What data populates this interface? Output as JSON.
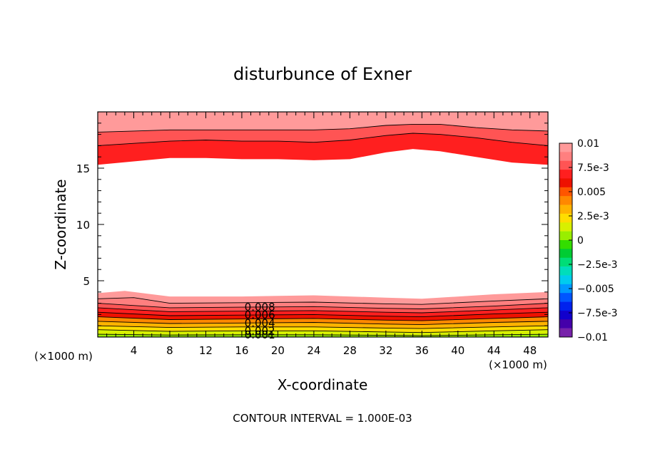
{
  "chart_data": {
    "type": "heatmap",
    "title": "disturbunce of Exner",
    "xlabel": "X-coordinate",
    "ylabel": "Z-coordinate",
    "x_unit_left": "(×1000 m)",
    "x_unit_right": "(×1000 m)",
    "footer": "CONTOUR INTERVAL = 1.000E-03",
    "xlim": [
      0,
      50
    ],
    "ylim": [
      0,
      20
    ],
    "xticks": [
      4,
      8,
      12,
      16,
      20,
      24,
      28,
      32,
      36,
      40,
      44,
      48
    ],
    "yticks": [
      5,
      10,
      15
    ],
    "grid": false,
    "contour_interval": 0.001,
    "colorbar": {
      "range": [
        -0.01,
        0.01
      ],
      "tick_labels": [
        "0.01",
        "7.5e-3",
        "0.005",
        "2.5e-3",
        "0",
        "−2.5e-3",
        "−0.005",
        "−7.5e-3",
        "−0.01"
      ],
      "colors": [
        "#ff9a9a",
        "#ff7f7f",
        "#ff5454",
        "#ff1f1f",
        "#ee1100",
        "#ff5500",
        "#ff8800",
        "#ffb300",
        "#ffdd00",
        "#d8f000",
        "#99ee00",
        "#33dd00",
        "#00cc33",
        "#00dd77",
        "#00ddbb",
        "#00ccee",
        "#0099ff",
        "#0055ff",
        "#0022ee",
        "#1100cc",
        "#4400aa",
        "#7722aa"
      ]
    },
    "contour_labels": [
      "0.008",
      "0.006",
      "0.004",
      "0.002",
      "0.001"
    ],
    "upper_contours": [
      {
        "level": 0.007,
        "z": [
          [
            0,
            15.3
          ],
          [
            4,
            15.6
          ],
          [
            8,
            15.9
          ],
          [
            12,
            15.9
          ],
          [
            16,
            15.8
          ],
          [
            20,
            15.8
          ],
          [
            24,
            15.7
          ],
          [
            28,
            15.8
          ],
          [
            32,
            16.4
          ],
          [
            35,
            16.7
          ],
          [
            38,
            16.5
          ],
          [
            42,
            16.0
          ],
          [
            46,
            15.5
          ],
          [
            50,
            15.3
          ]
        ]
      },
      {
        "level": 0.008,
        "z": [
          [
            0,
            17.0
          ],
          [
            4,
            17.2
          ],
          [
            8,
            17.4
          ],
          [
            12,
            17.5
          ],
          [
            16,
            17.4
          ],
          [
            20,
            17.4
          ],
          [
            24,
            17.3
          ],
          [
            28,
            17.5
          ],
          [
            32,
            17.9
          ],
          [
            35,
            18.1
          ],
          [
            38,
            18.0
          ],
          [
            42,
            17.7
          ],
          [
            46,
            17.3
          ],
          [
            50,
            17.0
          ]
        ]
      },
      {
        "level": 0.009,
        "z": [
          [
            0,
            18.2
          ],
          [
            4,
            18.3
          ],
          [
            8,
            18.4
          ],
          [
            12,
            18.4
          ],
          [
            16,
            18.4
          ],
          [
            20,
            18.4
          ],
          [
            24,
            18.4
          ],
          [
            28,
            18.5
          ],
          [
            32,
            18.8
          ],
          [
            35,
            18.9
          ],
          [
            38,
            18.9
          ],
          [
            42,
            18.6
          ],
          [
            46,
            18.4
          ],
          [
            50,
            18.3
          ]
        ]
      }
    ],
    "lower_contours": [
      {
        "level": 0.001,
        "z": [
          [
            0,
            0.25
          ],
          [
            8,
            0.18
          ],
          [
            16,
            0.2
          ],
          [
            24,
            0.2
          ],
          [
            32,
            0.15
          ],
          [
            36,
            0.12
          ],
          [
            44,
            0.2
          ],
          [
            50,
            0.25
          ]
        ]
      },
      {
        "level": 0.002,
        "z": [
          [
            0,
            0.65
          ],
          [
            8,
            0.5
          ],
          [
            16,
            0.55
          ],
          [
            24,
            0.55
          ],
          [
            32,
            0.45
          ],
          [
            36,
            0.4
          ],
          [
            44,
            0.55
          ],
          [
            50,
            0.65
          ]
        ]
      },
      {
        "level": 0.003,
        "z": [
          [
            0,
            1.0
          ],
          [
            8,
            0.85
          ],
          [
            16,
            0.9
          ],
          [
            24,
            0.9
          ],
          [
            32,
            0.8
          ],
          [
            36,
            0.75
          ],
          [
            44,
            0.9
          ],
          [
            50,
            1.0
          ]
        ]
      },
      {
        "level": 0.004,
        "z": [
          [
            0,
            1.4
          ],
          [
            8,
            1.2
          ],
          [
            16,
            1.25
          ],
          [
            24,
            1.3
          ],
          [
            32,
            1.15
          ],
          [
            36,
            1.1
          ],
          [
            44,
            1.3
          ],
          [
            50,
            1.4
          ]
        ]
      },
      {
        "level": 0.005,
        "z": [
          [
            0,
            1.8
          ],
          [
            8,
            1.55
          ],
          [
            16,
            1.6
          ],
          [
            24,
            1.65
          ],
          [
            32,
            1.5
          ],
          [
            36,
            1.45
          ],
          [
            44,
            1.65
          ],
          [
            50,
            1.8
          ]
        ]
      },
      {
        "level": 0.006,
        "z": [
          [
            0,
            2.2
          ],
          [
            8,
            1.9
          ],
          [
            16,
            1.95
          ],
          [
            24,
            2.0
          ],
          [
            32,
            1.85
          ],
          [
            36,
            1.8
          ],
          [
            44,
            2.05
          ],
          [
            50,
            2.2
          ]
        ]
      },
      {
        "level": 0.007,
        "z": [
          [
            0,
            2.6
          ],
          [
            8,
            2.25
          ],
          [
            16,
            2.3
          ],
          [
            24,
            2.35
          ],
          [
            32,
            2.2
          ],
          [
            36,
            2.15
          ],
          [
            44,
            2.4
          ],
          [
            50,
            2.6
          ]
        ]
      },
      {
        "level": 0.008,
        "z": [
          [
            0,
            3.0
          ],
          [
            8,
            2.6
          ],
          [
            16,
            2.65
          ],
          [
            24,
            2.7
          ],
          [
            32,
            2.55
          ],
          [
            36,
            2.5
          ],
          [
            44,
            2.75
          ],
          [
            50,
            3.0
          ]
        ]
      },
      {
        "level": 0.009,
        "z": [
          [
            0,
            3.4
          ],
          [
            4,
            3.5
          ],
          [
            8,
            3.0
          ],
          [
            16,
            3.05
          ],
          [
            24,
            3.1
          ],
          [
            32,
            2.95
          ],
          [
            36,
            2.9
          ],
          [
            44,
            3.2
          ],
          [
            50,
            3.4
          ]
        ]
      },
      {
        "level": 0.01,
        "z": [
          [
            0,
            3.9
          ],
          [
            3,
            4.1
          ],
          [
            8,
            3.6
          ],
          [
            16,
            3.6
          ],
          [
            24,
            3.7
          ],
          [
            32,
            3.5
          ],
          [
            36,
            3.4
          ],
          [
            44,
            3.8
          ],
          [
            50,
            4.0
          ]
        ]
      }
    ]
  }
}
